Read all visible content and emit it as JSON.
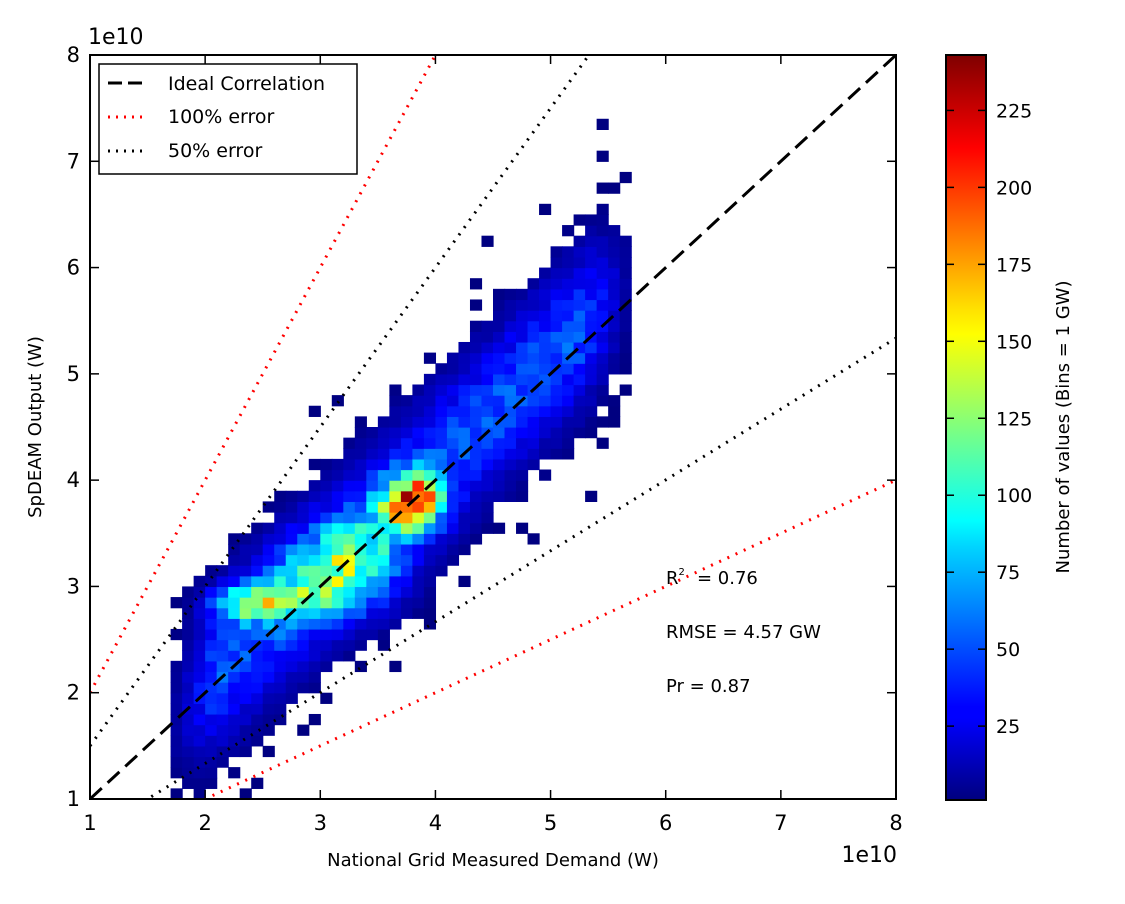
{
  "chart_data": {
    "type": "heatmap",
    "subtype": "2d-histogram scatter density with reference lines",
    "xlabel": "National Grid Measured Demand (W)",
    "ylabel": "SpDEAM Output (W)",
    "x_offset_label": "1e10",
    "y_offset_label": "1e10",
    "xlim": [
      1,
      8
    ],
    "ylim": [
      1,
      8
    ],
    "x_ticks": [
      1,
      2,
      3,
      4,
      5,
      6,
      7,
      8
    ],
    "y_ticks": [
      1,
      2,
      3,
      4,
      5,
      6,
      7,
      8
    ],
    "grid": false,
    "legend_position": "top-left",
    "legend": [
      {
        "label": "Ideal Correlation",
        "style": "dashed",
        "color": "#000000"
      },
      {
        "label": "100% error",
        "style": "dotted",
        "color": "#ff0000"
      },
      {
        "label": "50% error",
        "style": "dotted",
        "color": "#000000"
      }
    ],
    "reference_lines": [
      {
        "name": "ideal",
        "slope": 1.0,
        "color": "#000000",
        "style": "dashed"
      },
      {
        "name": "100pct_upper",
        "slope": 2.0,
        "color": "#ff0000",
        "style": "dotted"
      },
      {
        "name": "100pct_lower",
        "slope": 0.5,
        "color": "#ff0000",
        "style": "dotted"
      },
      {
        "name": "50pct_upper",
        "slope": 1.5,
        "color": "#000000",
        "style": "dotted"
      },
      {
        "name": "50pct_lower",
        "slope": 0.667,
        "color": "#000000",
        "style": "dotted"
      }
    ],
    "stats": {
      "r2_label": "R",
      "r2_sup": "2",
      "r2_value": "= 0.76",
      "rmse": "RMSE = 4.57 GW",
      "pr": "Pr = 0.87"
    },
    "bin_size": 0.1,
    "colorbar": {
      "label": "Number of values (Bins = 1 GW)",
      "colormap": "jet",
      "vmin": 1,
      "vmax": 243,
      "ticks": [
        25,
        50,
        75,
        100,
        125,
        150,
        175,
        200,
        225
      ]
    },
    "density_clusters": [
      {
        "x": 3.8,
        "y": 3.8,
        "sx": 0.17,
        "sy": 0.17,
        "peak": 175
      },
      {
        "x": 2.4,
        "y": 2.85,
        "sx": 0.22,
        "sy": 0.11,
        "peak": 95
      },
      {
        "x": 3.05,
        "y": 3.0,
        "sx": 0.35,
        "sy": 0.22,
        "peak": 70
      },
      {
        "x": 3.3,
        "y": 3.35,
        "sx": 0.3,
        "sy": 0.22,
        "peak": 55
      }
    ],
    "density_band": {
      "slope": 1.02,
      "intercept": 0.05,
      "x_min": 1.75,
      "x_max": 5.65,
      "peak": 50,
      "width": 0.55,
      "extent": 1.25
    }
  }
}
